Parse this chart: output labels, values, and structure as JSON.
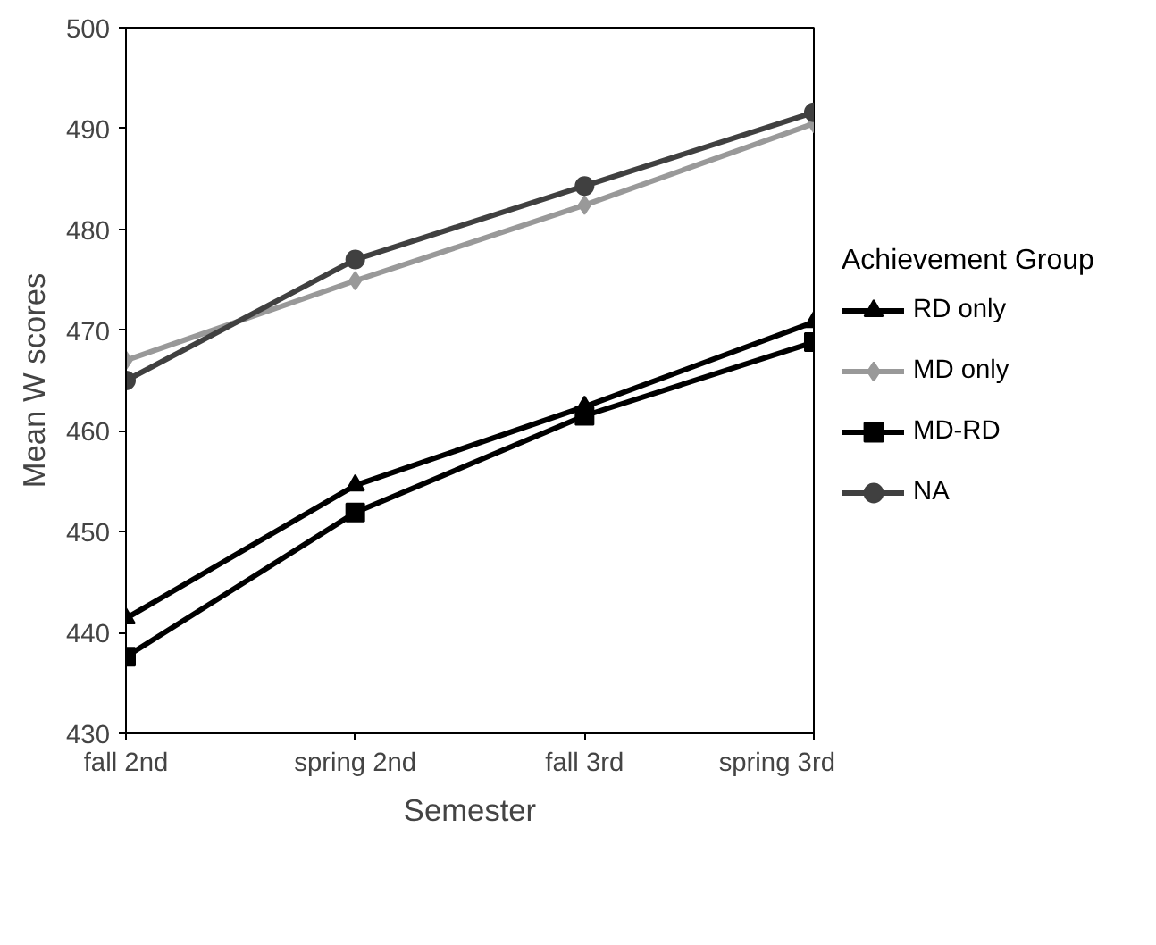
{
  "chart_data": {
    "type": "line",
    "xlabel": "Semester",
    "ylabel": "Mean W scores",
    "legend_title": "Achievement Group",
    "categories": [
      "fall 2nd",
      "spring 2nd",
      "fall 3rd",
      "spring 3rd"
    ],
    "series": [
      {
        "name": "RD only",
        "color": "#000000",
        "marker": "triangle",
        "values": [
          441.4,
          454.6,
          462.4,
          470.8
        ]
      },
      {
        "name": "MD only",
        "color": "#999999",
        "marker": "diamond",
        "values": [
          467.0,
          474.9,
          482.4,
          490.5
        ]
      },
      {
        "name": "MD-RD",
        "color": "#000000",
        "marker": "square",
        "values": [
          437.6,
          451.9,
          461.5,
          468.8
        ]
      },
      {
        "name": "NA",
        "color": "#404040",
        "marker": "circle",
        "values": [
          465.0,
          477.0,
          484.3,
          491.6
        ]
      }
    ],
    "ylim": [
      430,
      500
    ],
    "yticks": [
      430,
      440,
      450,
      460,
      470,
      480,
      490,
      500
    ],
    "legend": "right"
  }
}
